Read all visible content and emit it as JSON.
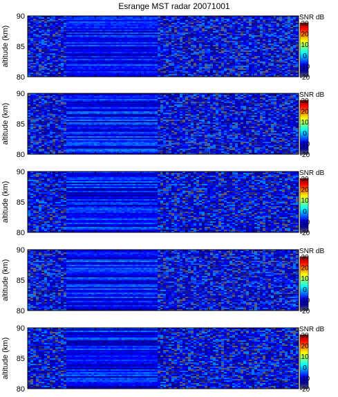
{
  "chart_data": {
    "type": "heatmap",
    "title": "Esrange MST radar 20071001",
    "panel_count": 5,
    "ylabel": "altitude (km)",
    "ylim": [
      80,
      90
    ],
    "y_ticks": [
      80,
      85,
      90
    ],
    "xlabel": "",
    "x_tick_count": 12,
    "colorbar": {
      "label": "SNR dB",
      "range": [
        -20,
        30
      ],
      "ticks": [
        -20,
        -10,
        0,
        10,
        20,
        30
      ]
    },
    "colormap": [
      "#5a5a7a",
      "#00008f",
      "#0000ff",
      "#0080ff",
      "#00ffff",
      "#80ff80",
      "#ffff00",
      "#ff8000",
      "#ff0000",
      "#800000"
    ],
    "description_levels": {
      "background_snr_db_range": [
        -20,
        -5
      ],
      "echo_layer_snr_db_range": [
        -15,
        0
      ],
      "echo_layer_x_fraction": [
        0.14,
        0.48
      ]
    },
    "grid": false
  },
  "panels": [
    {
      "id": "panel-1"
    },
    {
      "id": "panel-2"
    },
    {
      "id": "panel-3"
    },
    {
      "id": "panel-4"
    },
    {
      "id": "panel-5"
    }
  ]
}
